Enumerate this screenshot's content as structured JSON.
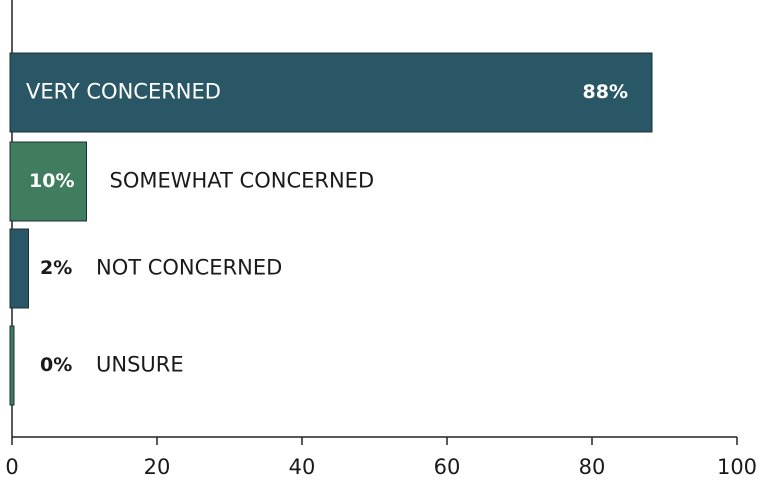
{
  "chart_data": {
    "type": "barh",
    "categories": [
      "VERY CONCERNED",
      "SOMEWHAT CONCERNED",
      "NOT CONCERNED",
      "UNSURE"
    ],
    "values": [
      88,
      10,
      2,
      0
    ],
    "value_labels": [
      "88%",
      "10%",
      "2%",
      "0%"
    ],
    "colors": [
      "#2a5766",
      "#3f7d5e",
      "#2a5766",
      "#3f7d5e"
    ],
    "xlim": [
      0,
      100
    ],
    "xticks": [
      0,
      20,
      40,
      60,
      80,
      100
    ]
  }
}
